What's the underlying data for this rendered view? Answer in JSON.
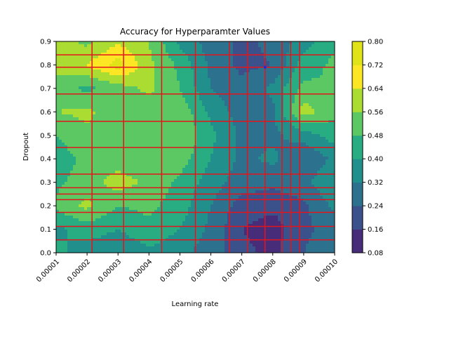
{
  "chart_data": {
    "type": "contour",
    "title": "Accuracy for Hyperparamter Values",
    "xlabel": "Learning rate",
    "ylabel": "Dropout",
    "xlim": [
      1e-05,
      0.0001
    ],
    "ylim": [
      0.0,
      0.9
    ],
    "x_ticks": [
      "0.00001",
      "0.00002",
      "0.00003",
      "0.00004",
      "0.00005",
      "0.00006",
      "0.00007",
      "0.00008",
      "0.00009",
      "0.00010"
    ],
    "y_ticks": [
      "0.0",
      "0.1",
      "0.2",
      "0.3",
      "0.4",
      "0.5",
      "0.6",
      "0.7",
      "0.8",
      "0.9"
    ],
    "colorbar": {
      "levels": [
        0.08,
        0.16,
        0.24,
        0.32,
        0.4,
        0.48,
        0.56,
        0.64,
        0.72,
        0.8
      ],
      "labels": [
        "0.08",
        "0.16",
        "0.24",
        "0.32",
        "0.40",
        "0.48",
        "0.56",
        "0.64",
        "0.72",
        "0.80"
      ],
      "colors": [
        "#472c7a",
        "#3b518b",
        "#2c718e",
        "#21908d",
        "#27ad81",
        "#5cc863",
        "#aadc32",
        "#fde725",
        "#dfe318"
      ]
    },
    "grid_x": [
      1e-05,
      2e-05,
      3e-05,
      4e-05,
      5e-05,
      6e-05,
      7e-05,
      8e-05,
      9e-05,
      0.0001
    ],
    "grid_y": [
      0.0,
      0.1,
      0.2,
      0.3,
      0.4,
      0.5,
      0.6,
      0.7,
      0.8,
      0.9
    ],
    "accuracy_grid": [
      [
        0.42,
        0.36,
        0.33,
        0.38,
        0.34,
        0.28,
        0.18,
        0.14,
        0.24,
        0.3
      ],
      [
        0.38,
        0.44,
        0.4,
        0.46,
        0.4,
        0.3,
        0.16,
        0.12,
        0.22,
        0.28
      ],
      [
        0.5,
        0.58,
        0.48,
        0.5,
        0.44,
        0.32,
        0.2,
        0.18,
        0.22,
        0.34
      ],
      [
        0.46,
        0.52,
        0.6,
        0.54,
        0.46,
        0.36,
        0.28,
        0.26,
        0.3,
        0.4
      ],
      [
        0.44,
        0.5,
        0.52,
        0.5,
        0.52,
        0.4,
        0.3,
        0.34,
        0.24,
        0.34
      ],
      [
        0.48,
        0.54,
        0.52,
        0.56,
        0.56,
        0.42,
        0.3,
        0.3,
        0.36,
        0.44
      ],
      [
        0.56,
        0.58,
        0.5,
        0.52,
        0.54,
        0.38,
        0.28,
        0.3,
        0.6,
        0.5
      ],
      [
        0.52,
        0.46,
        0.52,
        0.58,
        0.48,
        0.32,
        0.26,
        0.34,
        0.5,
        0.48
      ],
      [
        0.6,
        0.64,
        0.76,
        0.58,
        0.46,
        0.3,
        0.22,
        0.24,
        0.44,
        0.5
      ],
      [
        0.6,
        0.54,
        0.62,
        0.56,
        0.38,
        0.28,
        0.22,
        0.26,
        0.36,
        0.46
      ]
    ],
    "tested_learning_rates": [
      2.16e-05,
      3.18e-05,
      4.41e-05,
      5.5e-05,
      6.6e-05,
      7.18e-05,
      7.75e-05,
      8.3e-05,
      8.58e-05,
      8.87e-05
    ],
    "tested_dropouts": [
      0.055,
      0.112,
      0.172,
      0.226,
      0.25,
      0.277,
      0.335,
      0.448,
      0.56,
      0.676,
      0.79,
      0.843
    ],
    "best_point": {
      "x": 7.75e-05,
      "y": 0.79
    }
  }
}
